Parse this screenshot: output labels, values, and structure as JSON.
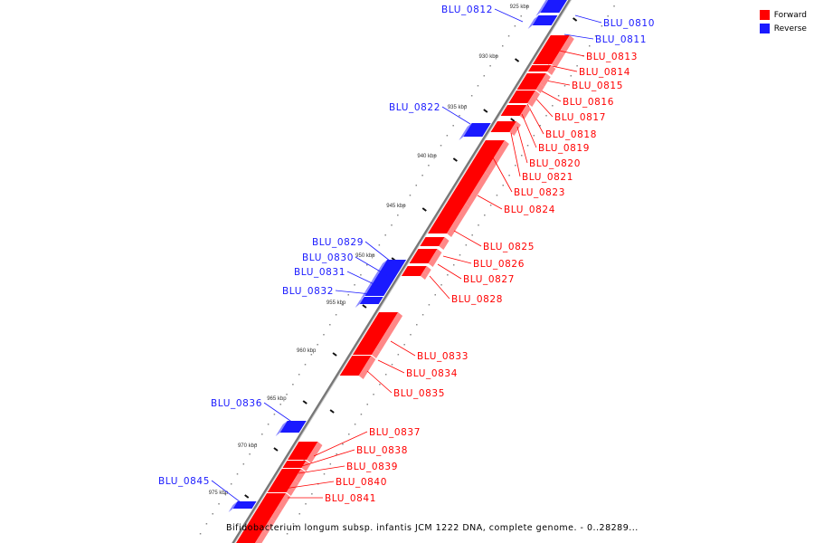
{
  "legend": {
    "forward": "Forward",
    "reverse": "Reverse"
  },
  "colors": {
    "forward": "#ff0000",
    "reverse": "#1a1aff",
    "backbone": "#888888"
  },
  "caption": "Bifidobacterium longum subsp. infantis JCM 1222 DNA, complete genome. - 0..28289...",
  "ruler": [
    "925 kbp",
    "930 kbp",
    "935 kbp",
    "940 kbp",
    "945 kbp",
    "950 kbp",
    "955 kbp",
    "960 kbp",
    "965 kbp",
    "970 kbp",
    "975 kbp"
  ],
  "genes": [
    {
      "name": "BLU_0810",
      "strand": "reverse"
    },
    {
      "name": "BLU_0811",
      "strand": "reverse"
    },
    {
      "name": "BLU_0812",
      "strand": "reverse"
    },
    {
      "name": "BLU_0813",
      "strand": "forward"
    },
    {
      "name": "BLU_0814",
      "strand": "forward"
    },
    {
      "name": "BLU_0815",
      "strand": "forward"
    },
    {
      "name": "BLU_0816",
      "strand": "forward"
    },
    {
      "name": "BLU_0817",
      "strand": "forward"
    },
    {
      "name": "BLU_0818",
      "strand": "forward"
    },
    {
      "name": "BLU_0819",
      "strand": "forward"
    },
    {
      "name": "BLU_0820",
      "strand": "forward"
    },
    {
      "name": "BLU_0821",
      "strand": "forward"
    },
    {
      "name": "BLU_0822",
      "strand": "reverse"
    },
    {
      "name": "BLU_0823",
      "strand": "forward"
    },
    {
      "name": "BLU_0824",
      "strand": "forward"
    },
    {
      "name": "BLU_0825",
      "strand": "forward"
    },
    {
      "name": "BLU_0826",
      "strand": "forward"
    },
    {
      "name": "BLU_0827",
      "strand": "forward"
    },
    {
      "name": "BLU_0828",
      "strand": "forward"
    },
    {
      "name": "BLU_0829",
      "strand": "reverse"
    },
    {
      "name": "BLU_0830",
      "strand": "reverse"
    },
    {
      "name": "BLU_0831",
      "strand": "reverse"
    },
    {
      "name": "BLU_0832",
      "strand": "reverse"
    },
    {
      "name": "BLU_0833",
      "strand": "forward"
    },
    {
      "name": "BLU_0834",
      "strand": "forward"
    },
    {
      "name": "BLU_0835",
      "strand": "forward"
    },
    {
      "name": "BLU_0836",
      "strand": "reverse"
    },
    {
      "name": "BLU_0837",
      "strand": "forward"
    },
    {
      "name": "BLU_0838",
      "strand": "forward"
    },
    {
      "name": "BLU_0839",
      "strand": "forward"
    },
    {
      "name": "BLU_0840",
      "strand": "forward"
    },
    {
      "name": "BLU_0841",
      "strand": "forward"
    },
    {
      "name": "BLU_0845",
      "strand": "reverse"
    }
  ]
}
